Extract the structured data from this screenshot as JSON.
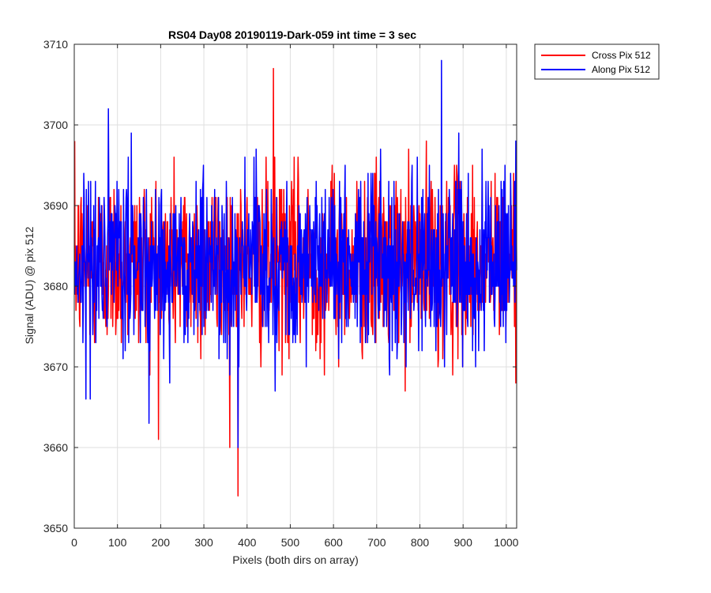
{
  "chart_data": {
    "type": "line",
    "title": "RS04 Day08 20190119-Dark-059 int time = 3 sec",
    "xlabel": "Pixels (both dirs on array)",
    "ylabel": "Signal (ADU) @ pix 512",
    "xlim": [
      0,
      1024
    ],
    "ylim": [
      3650,
      3710
    ],
    "xticks": [
      0,
      100,
      200,
      300,
      400,
      500,
      600,
      700,
      800,
      900,
      1000
    ],
    "yticks": [
      3650,
      3660,
      3670,
      3680,
      3690,
      3700,
      3710
    ],
    "grid": true,
    "legend_position": "outside top-right",
    "series": [
      {
        "name": "Cross Pix 512",
        "color": "#ff0000",
        "noise": {
          "n_points": 1024,
          "x_start": 1,
          "x_step": 1,
          "mean": 3683,
          "std": 5.5,
          "min": 3654,
          "max": 3707
        }
      },
      {
        "name": "Along Pix 512",
        "color": "#0000ff",
        "noise": {
          "n_points": 1024,
          "x_start": 1,
          "x_step": 1,
          "mean": 3683,
          "std": 5.5,
          "min": 3660,
          "max": 3708
        }
      }
    ]
  }
}
